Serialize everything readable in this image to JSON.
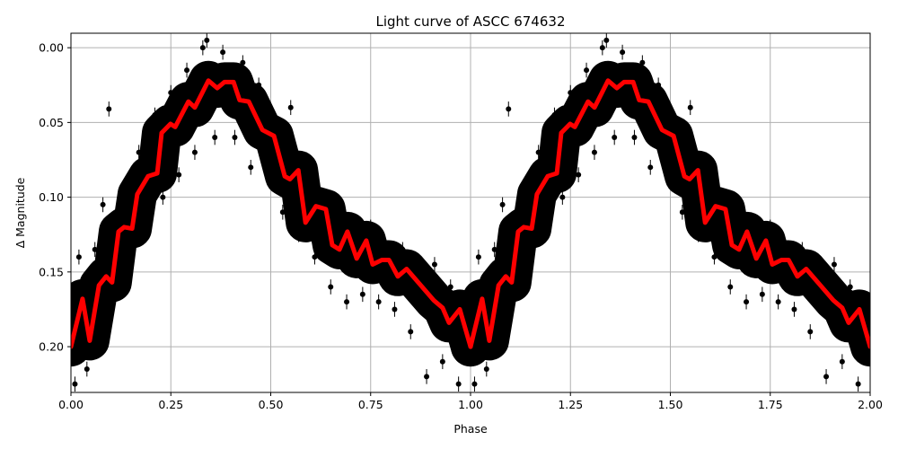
{
  "chart_data": {
    "type": "scatter",
    "title": "Light curve of ASCC 674632",
    "xlabel": "Phase",
    "ylabel": "Δ Magnitude",
    "xlim": [
      0,
      2
    ],
    "ylim": [
      -0.0097,
      0.2306
    ],
    "y_inverted": true,
    "grid": true,
    "x_ticks": [
      "0.00",
      "0.25",
      "0.50",
      "0.75",
      "1.00",
      "1.25",
      "1.50",
      "1.75",
      "2.00"
    ],
    "y_ticks": [
      "0.00",
      "0.05",
      "0.10",
      "0.15",
      "0.20"
    ],
    "period_repeats": 2,
    "colors": {
      "data": "#000000",
      "model": "#ff0000",
      "grid": "#b0b0b0"
    },
    "series": [
      {
        "kind": "errorbar-scatter",
        "phase": [
          0.01,
          0.02,
          0.04,
          0.06,
          0.08,
          0.095,
          0.1,
          0.13,
          0.15,
          0.17,
          0.19,
          0.21,
          0.23,
          0.25,
          0.27,
          0.29,
          0.31,
          0.33,
          0.34,
          0.36,
          0.38,
          0.41,
          0.43,
          0.45,
          0.47,
          0.49,
          0.51,
          0.53,
          0.55,
          0.57,
          0.59,
          0.61,
          0.63,
          0.65,
          0.67,
          0.69,
          0.71,
          0.73,
          0.75,
          0.77,
          0.79,
          0.81,
          0.83,
          0.85,
          0.87,
          0.89,
          0.91,
          0.93,
          0.95,
          0.97,
          0.99
        ],
        "mag": [
          0.225,
          0.14,
          0.215,
          0.135,
          0.105,
          0.041,
          0.18,
          0.095,
          0.145,
          0.07,
          0.115,
          0.045,
          0.1,
          0.03,
          0.085,
          0.015,
          0.07,
          0.0,
          -0.005,
          0.06,
          0.003,
          0.06,
          0.01,
          0.08,
          0.025,
          0.075,
          0.055,
          0.11,
          0.04,
          0.125,
          0.075,
          0.14,
          0.1,
          0.16,
          0.115,
          0.17,
          0.13,
          0.165,
          0.12,
          0.17,
          0.135,
          0.175,
          0.135,
          0.19,
          0.145,
          0.22,
          0.145,
          0.21,
          0.16,
          0.225,
          0.17
        ],
        "err": 0.005
      },
      {
        "kind": "model-line",
        "phase": [
          0.0,
          0.029,
          0.047,
          0.07,
          0.088,
          0.103,
          0.119,
          0.133,
          0.153,
          0.166,
          0.193,
          0.216,
          0.227,
          0.249,
          0.261,
          0.294,
          0.31,
          0.344,
          0.366,
          0.384,
          0.407,
          0.422,
          0.445,
          0.479,
          0.508,
          0.535,
          0.548,
          0.569,
          0.587,
          0.613,
          0.638,
          0.654,
          0.672,
          0.692,
          0.715,
          0.739,
          0.755,
          0.778,
          0.796,
          0.818,
          0.84,
          0.908,
          0.93,
          0.946,
          0.973,
          1.0
        ],
        "mag": [
          0.2,
          0.168,
          0.196,
          0.159,
          0.153,
          0.157,
          0.123,
          0.12,
          0.121,
          0.098,
          0.086,
          0.084,
          0.057,
          0.051,
          0.053,
          0.036,
          0.04,
          0.022,
          0.027,
          0.023,
          0.023,
          0.035,
          0.036,
          0.055,
          0.059,
          0.086,
          0.088,
          0.082,
          0.117,
          0.106,
          0.108,
          0.132,
          0.135,
          0.123,
          0.141,
          0.129,
          0.145,
          0.142,
          0.142,
          0.153,
          0.148,
          0.169,
          0.174,
          0.184,
          0.175,
          0.2
        ]
      }
    ]
  }
}
